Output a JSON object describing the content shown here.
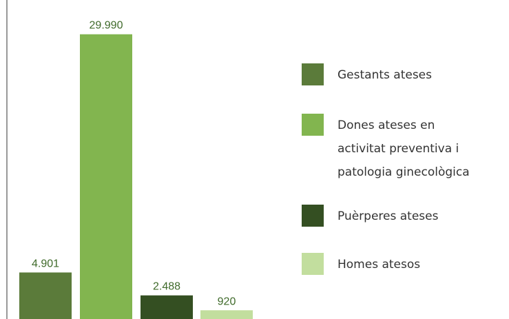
{
  "chart_data": {
    "type": "bar",
    "series": [
      {
        "name": "Gestants ateses",
        "color": "#5b7b3a",
        "values": [
          4901
        ],
        "value_labels": [
          "4.901"
        ]
      },
      {
        "name": "Dones ateses en activitat preventiva i patologia ginecològica",
        "color": "#82b54f",
        "values": [
          29990
        ],
        "value_labels": [
          "29.990"
        ]
      },
      {
        "name": "Puèrperes ateses",
        "color": "#344f22",
        "values": [
          2488
        ],
        "value_labels": [
          "2.488"
        ]
      },
      {
        "name": "Homes atesos",
        "color": "#c2de9e",
        "values": [
          920
        ],
        "value_labels": [
          "920"
        ]
      }
    ],
    "ylim": [
      0,
      33600
    ],
    "legend": "right"
  }
}
